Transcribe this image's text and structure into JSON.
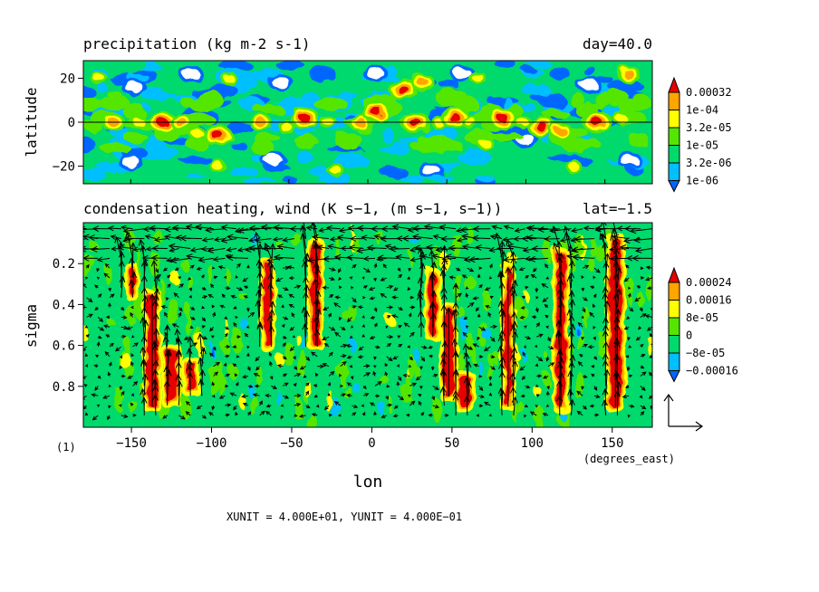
{
  "chart_data": [
    {
      "type": "heatmap",
      "title": "precipitation (kg m-2 s-1)",
      "right_title": "day=40.0",
      "ylabel": "latitude",
      "xlim": [
        -180,
        180
      ],
      "ylim": [
        -28,
        28
      ],
      "y_ticks": [
        20,
        0,
        -20
      ],
      "y_tick_labels": [
        "20",
        "0",
        "−20"
      ],
      "reference_line_y": 0,
      "colorbar": {
        "labels": [
          "0.00032",
          "1e-04",
          "3.2e-05",
          "1e-05",
          "3.2e-06",
          "1e-06"
        ],
        "colors": [
          "#0066ff",
          "#00bfff",
          "#00d96c",
          "#54e600",
          "#ffff00",
          "#ffa500",
          "#e60000"
        ]
      },
      "blobs": [
        {
          "lon": -161,
          "lat": 0,
          "level": 5
        },
        {
          "lon": -145,
          "lat": 0,
          "level": 4
        },
        {
          "lon": -130,
          "lat": 0,
          "level": 6
        },
        {
          "lon": -118,
          "lat": 0,
          "level": 5
        },
        {
          "lon": -108,
          "lat": -5,
          "level": 4
        },
        {
          "lon": -95,
          "lat": -6,
          "level": 6
        },
        {
          "lon": -68,
          "lat": 0,
          "level": 5
        },
        {
          "lon": -52,
          "lat": -2,
          "level": 4
        },
        {
          "lon": -40,
          "lat": 2,
          "level": 6
        },
        {
          "lon": -25,
          "lat": 0,
          "level": 4
        },
        {
          "lon": -5,
          "lat": 0,
          "level": 5
        },
        {
          "lon": 5,
          "lat": 5,
          "level": 6
        },
        {
          "lon": 22,
          "lat": 15,
          "level": 6
        },
        {
          "lon": 35,
          "lat": 18,
          "level": 5
        },
        {
          "lon": 30,
          "lat": 0,
          "level": 6
        },
        {
          "lon": 45,
          "lat": 0,
          "level": 4
        },
        {
          "lon": 55,
          "lat": 2,
          "level": 6
        },
        {
          "lon": 65,
          "lat": 0,
          "level": 4
        },
        {
          "lon": 75,
          "lat": -10,
          "level": 4
        },
        {
          "lon": 85,
          "lat": 2,
          "level": 6
        },
        {
          "lon": 98,
          "lat": 0,
          "level": 4
        },
        {
          "lon": 110,
          "lat": -2,
          "level": 6
        },
        {
          "lon": 122,
          "lat": -4,
          "level": 5
        },
        {
          "lon": 145,
          "lat": 0,
          "level": 6
        },
        {
          "lon": 160,
          "lat": 2,
          "level": 4
        },
        {
          "lon": 165,
          "lat": 22,
          "level": 5
        },
        {
          "lon": -170,
          "lat": 20,
          "level": 4
        },
        {
          "lon": -88,
          "lat": 20,
          "level": 4
        },
        {
          "lon": -95,
          "lat": -20,
          "level": 4
        },
        {
          "lon": -20,
          "lat": -22,
          "level": 4
        },
        {
          "lon": 70,
          "lat": 20,
          "level": 4
        },
        {
          "lon": 130,
          "lat": -20,
          "level": 4
        }
      ],
      "dry_patches": [
        {
          "lon": -148,
          "lat": 16
        },
        {
          "lon": -112,
          "lat": 22
        },
        {
          "lon": -55,
          "lat": 18
        },
        {
          "lon": 5,
          "lat": 22
        },
        {
          "lon": 60,
          "lat": 22
        },
        {
          "lon": 140,
          "lat": 17
        },
        {
          "lon": -150,
          "lat": -18
        },
        {
          "lon": -60,
          "lat": -17
        },
        {
          "lon": 40,
          "lat": -22
        },
        {
          "lon": 100,
          "lat": -8
        },
        {
          "lon": 165,
          "lat": -17
        }
      ]
    },
    {
      "type": "heatmap",
      "title": "condensation heating, wind (K s−1, (m s−1, s−1))",
      "right_title": "lat=−1.5",
      "xlabel": "lon",
      "ylabel": "sigma",
      "x_units": "(degrees_east)",
      "xlim": [
        -180,
        175
      ],
      "ylim": [
        1.0,
        0.0
      ],
      "x_ticks": [
        -150,
        -100,
        -50,
        0,
        50,
        100,
        150
      ],
      "x_tick_labels": [
        "−150",
        "−100",
        "−50",
        "0",
        "50",
        "100",
        "150"
      ],
      "y_ticks": [
        0.2,
        0.4,
        0.6,
        0.8
      ],
      "y_tick_labels": [
        "0.2",
        "0.4",
        "0.6",
        "0.8"
      ],
      "colorbar": {
        "labels": [
          "0.00024",
          "0.00016",
          "8e-05",
          "0",
          "−8e-05",
          "−0.00016"
        ],
        "colors": [
          "#0066ff",
          "#00bfff",
          "#00d96c",
          "#54e600",
          "#ffff00",
          "#ffa500",
          "#e60000"
        ]
      },
      "columns": [
        {
          "lon": -137,
          "top": 0.35,
          "bottom": 0.9,
          "width": 5
        },
        {
          "lon": -150,
          "top": 0.22,
          "bottom": 0.35,
          "width": 3
        },
        {
          "lon": -125,
          "top": 0.62,
          "bottom": 0.88,
          "width": 6
        },
        {
          "lon": -113,
          "top": 0.68,
          "bottom": 0.82,
          "width": 5
        },
        {
          "lon": -65,
          "top": 0.2,
          "bottom": 0.6,
          "width": 4
        },
        {
          "lon": -35,
          "top": 0.1,
          "bottom": 0.6,
          "width": 4
        },
        {
          "lon": 38,
          "top": 0.25,
          "bottom": 0.55,
          "width": 4
        },
        {
          "lon": 48,
          "top": 0.42,
          "bottom": 0.85,
          "width": 5
        },
        {
          "lon": 58,
          "top": 0.75,
          "bottom": 0.9,
          "width": 6
        },
        {
          "lon": 85,
          "top": 0.22,
          "bottom": 0.9,
          "width": 3
        },
        {
          "lon": 118,
          "top": 0.15,
          "bottom": 0.9,
          "width": 5
        },
        {
          "lon": 152,
          "top": 0.08,
          "bottom": 0.9,
          "width": 6
        }
      ],
      "vector_reference": {
        "text": "XUNIT = 4.000E+01, YUNIT = 4.000E−01",
        "xunit": 40.0,
        "yunit": 0.4
      },
      "footnote": "(1)"
    }
  ]
}
